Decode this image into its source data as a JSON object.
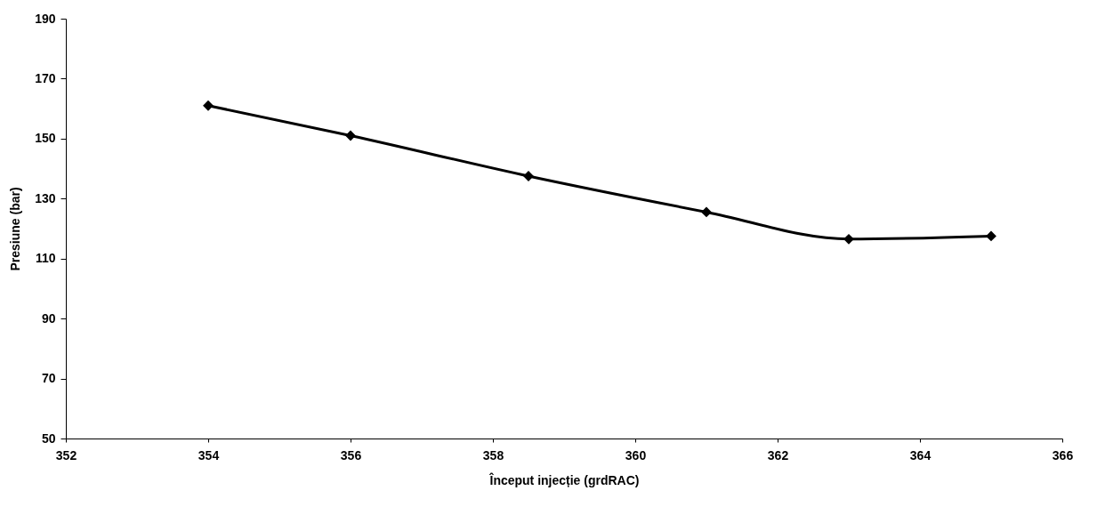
{
  "chart_data": {
    "type": "line",
    "xlabel": "Început injecție (grdRAC)",
    "ylabel": "Presiune (bar)",
    "x": [
      354,
      356,
      358.5,
      361,
      363,
      365
    ],
    "series": [
      {
        "color": "#000000",
        "values": [
          161,
          151,
          137.5,
          125.5,
          116.5,
          117.5
        ]
      }
    ],
    "xlim": [
      352,
      366
    ],
    "xticks": [
      352,
      354,
      356,
      358,
      360,
      362,
      364,
      366
    ],
    "ylim": [
      50,
      190
    ],
    "yticks": [
      50,
      70,
      90,
      110,
      130,
      150,
      170,
      190
    ],
    "marker": "diamond",
    "line_style": "solid",
    "grid": false,
    "legend": false
  }
}
